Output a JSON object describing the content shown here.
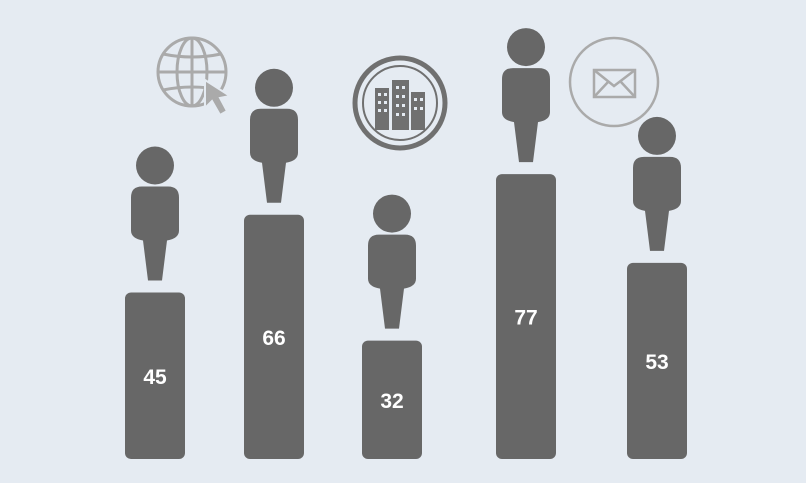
{
  "chart_data": {
    "type": "bar",
    "categories": [
      "",
      "",
      "",
      "",
      ""
    ],
    "values": [
      45,
      66,
      32,
      77,
      53
    ],
    "labels": [
      "45",
      "66",
      "32",
      "77",
      "53"
    ],
    "title": "",
    "xlabel": "",
    "ylabel": "",
    "ylim": [
      0,
      100
    ],
    "grid": false,
    "legend": "none"
  },
  "decorations": {
    "icons": [
      "globe-cursor-icon",
      "city-buildings-icon",
      "envelope-icon"
    ],
    "figure_icon": "person-icon"
  },
  "colors": {
    "background": "#e5ebf2",
    "bar": "#676767",
    "person": "#676767",
    "label": "#ffffff",
    "icon_light": "#aaaaaa",
    "icon_dark": "#707070"
  }
}
